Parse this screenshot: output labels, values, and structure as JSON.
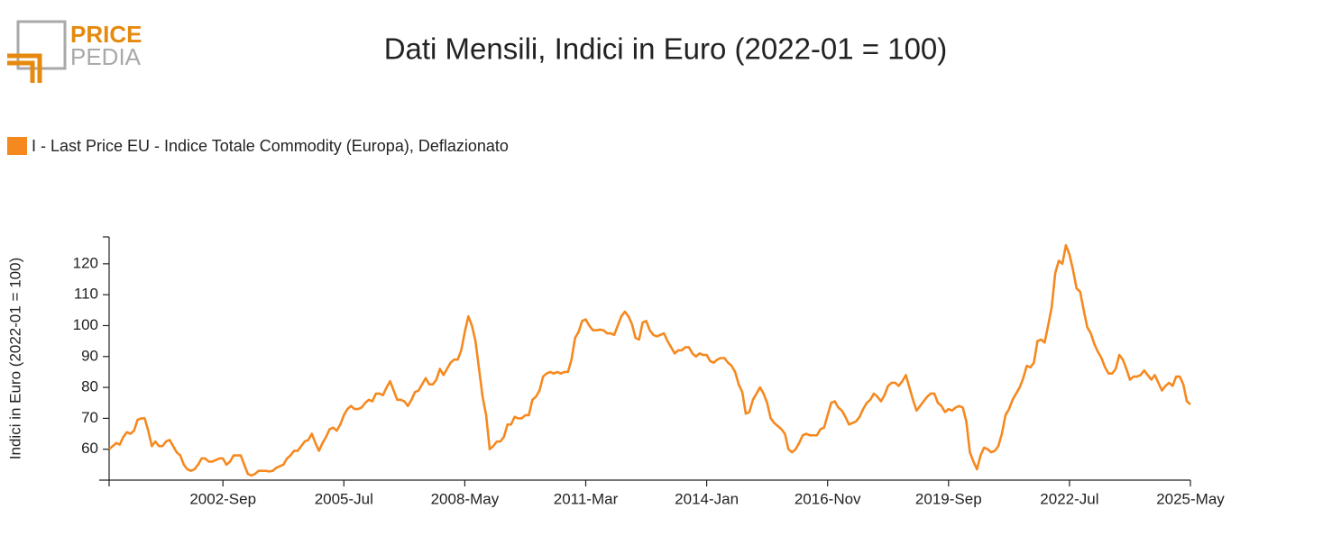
{
  "logo": {
    "top": "PRICE",
    "bottom": "PEDIA"
  },
  "chart_data": {
    "type": "line",
    "title": "Dati Mensili, Indici in Euro (2022-01 = 100)",
    "y_label": "Indici in Euro (2022-01 = 100)",
    "legend": "top-left",
    "categories": [
      null,
      null,
      null,
      null,
      null,
      null,
      null,
      null,
      null,
      null,
      null,
      null,
      null,
      null,
      null,
      null,
      null,
      null,
      null,
      null,
      null,
      null,
      null,
      null,
      null,
      null,
      null,
      null,
      null,
      null,
      null,
      null,
      "2002-Sep",
      null,
      null,
      null,
      null,
      null,
      null,
      null,
      null,
      null,
      null,
      null,
      null,
      null,
      null,
      null,
      null,
      null,
      null,
      null,
      null,
      null,
      null,
      null,
      null,
      null,
      null,
      null,
      null,
      null,
      null,
      null,
      null,
      null,
      "2005-Jul",
      null,
      null,
      null,
      null,
      null,
      null,
      null,
      null,
      null,
      null,
      null,
      null,
      null,
      null,
      null,
      null,
      null,
      null,
      null,
      null,
      null,
      null,
      null,
      null,
      null,
      null,
      null,
      null,
      null,
      null,
      null,
      null,
      null,
      "2008-May",
      null,
      null,
      null,
      null,
      null,
      null,
      null,
      null,
      null,
      null,
      null,
      null,
      null,
      null,
      null,
      null,
      null,
      null,
      null,
      null,
      null,
      null,
      null,
      null,
      null,
      null,
      null,
      null,
      null,
      null,
      null,
      null,
      null,
      "2011-Mar",
      null,
      null,
      null,
      null,
      null,
      null,
      null,
      null,
      null,
      null,
      null,
      null,
      null,
      null,
      null,
      null,
      null,
      null,
      null,
      null,
      null,
      null,
      null,
      null,
      null,
      null,
      null,
      null,
      null,
      null,
      null,
      null,
      null,
      "2014-Jan",
      null,
      null,
      null,
      null,
      null,
      null,
      null,
      null,
      null,
      null,
      null,
      null,
      null,
      null,
      null,
      null,
      null,
      null,
      null,
      null,
      null,
      null,
      null,
      null,
      null,
      null,
      null,
      null,
      null,
      null,
      null,
      null,
      null,
      "2016-Nov",
      null,
      null,
      null,
      null,
      null,
      null,
      null,
      null,
      null,
      null,
      null,
      null,
      null,
      null,
      null,
      null,
      null,
      null,
      null,
      null,
      null,
      null,
      null,
      null,
      null,
      null,
      null,
      null,
      null,
      null,
      null,
      null,
      null,
      "2019-Sep",
      null,
      null,
      null,
      null,
      null,
      null,
      null,
      null,
      null,
      null,
      null,
      null,
      null,
      null,
      null,
      null,
      null,
      null,
      null,
      null,
      null,
      null,
      null,
      null,
      null,
      null,
      null,
      null,
      null,
      null,
      null,
      null,
      null,
      "2022-Jul",
      null,
      null,
      null,
      null,
      null,
      null,
      null,
      null,
      null,
      null,
      null,
      null,
      null,
      null,
      null,
      null,
      null,
      null,
      null,
      null,
      null,
      null,
      null,
      null,
      null,
      null,
      null,
      null,
      null,
      null,
      null,
      null,
      null,
      "2025-May"
    ],
    "series": [
      {
        "name": "I - Last Price EU - Indice Totale Commodity (Europa), Deflazionato",
        "color": "#f5891f",
        "values": [
          60,
          61,
          62,
          61.5,
          64,
          65.5,
          65,
          66,
          69.5,
          70,
          70,
          66,
          61,
          62.5,
          61,
          61,
          62.5,
          63,
          61,
          59,
          58,
          55,
          53.5,
          53,
          53.5,
          55,
          57,
          57,
          56,
          56,
          56.5,
          57,
          57,
          55,
          56,
          58,
          58,
          58,
          55,
          52,
          51.5,
          52,
          53,
          53,
          53,
          52.8,
          53,
          54,
          54.5,
          55,
          57,
          58,
          59.5,
          59.5,
          61,
          62.5,
          63,
          65,
          62,
          59.5,
          62,
          64,
          66.5,
          67,
          66,
          68,
          71,
          73,
          74,
          73,
          73,
          73.5,
          75,
          76,
          75.5,
          78,
          78,
          77.5,
          80,
          82,
          79,
          76,
          76,
          75.5,
          74,
          76,
          78.5,
          79,
          81,
          83,
          81,
          81,
          82.5,
          86,
          84,
          86,
          88,
          89,
          89,
          92,
          98,
          103,
          100,
          95,
          86,
          77,
          71,
          60,
          61,
          62.5,
          62.5,
          64,
          68,
          68,
          70.5,
          70,
          70,
          71,
          71,
          76,
          77,
          79,
          83.5,
          84.5,
          85,
          84.5,
          85,
          84.5,
          85,
          85,
          89,
          96,
          98,
          101.5,
          102,
          100,
          98.5,
          98.5,
          98.7,
          98.5,
          97.5,
          97.5,
          97,
          100,
          103,
          104.5,
          103,
          100.5,
          96,
          95.5,
          101,
          101.5,
          98.5,
          97,
          96.5,
          97,
          97.5,
          95,
          93,
          91,
          92,
          92,
          93,
          93,
          91,
          90,
          91,
          90.5,
          90.5,
          88.5,
          88,
          89,
          89.5,
          89.5,
          88,
          87,
          85,
          81,
          78.5,
          71.5,
          72,
          76,
          78,
          80,
          78,
          75,
          70,
          68.5,
          67.5,
          66.5,
          65,
          60,
          59,
          60,
          62,
          64.5,
          65,
          64.5,
          64.5,
          64.5,
          66.5,
          67,
          71,
          75,
          75.5,
          73.5,
          72.5,
          70.5,
          68,
          68.5,
          69,
          70.5,
          73,
          75,
          76,
          78,
          77,
          75.5,
          77.5,
          80.5,
          81.5,
          81.5,
          80.5,
          82,
          84,
          80,
          76,
          72.5,
          74,
          75.5,
          77,
          78,
          78,
          75,
          74,
          72,
          73,
          72.5,
          73.5,
          74,
          73.5,
          69,
          59,
          56,
          53.5,
          58,
          60.5,
          60,
          59,
          59.5,
          61,
          65,
          71,
          73,
          76,
          78,
          80,
          83,
          87,
          86.5,
          88,
          95,
          95.5,
          94.5,
          100,
          106,
          117,
          121,
          120,
          126,
          123,
          118,
          112,
          111,
          105,
          99.5,
          97.5,
          94,
          91.5,
          89.5,
          86.5,
          84.5,
          84.5,
          86,
          90.5,
          89,
          86,
          82.5,
          83.5,
          83.5,
          84,
          85.5,
          84,
          82.5,
          84,
          81.5,
          79,
          80.5,
          81.5,
          80.5,
          83.5,
          83.5,
          81,
          75.5,
          74.5
        ]
      }
    ],
    "ylim": [
      50,
      128.7
    ],
    "yticks": [
      60,
      70,
      80,
      90,
      100,
      110,
      120
    ]
  }
}
